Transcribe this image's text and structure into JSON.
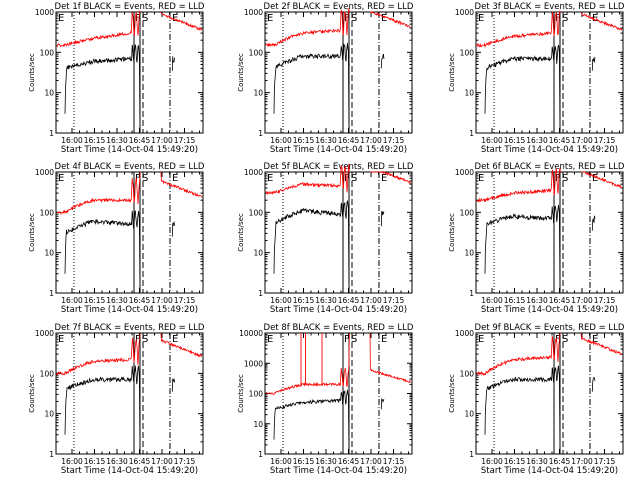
{
  "colors": {
    "events": "#000000",
    "lld": "#ff0000",
    "background": "#ffffff",
    "axis": "#000000"
  },
  "common": {
    "ylabel": "Counts/sec",
    "xlabel": "Start Time (14-Oct-04 15:49:20)",
    "xticks": [
      "16:00",
      "16:15",
      "16:30",
      "16:45",
      "17:00",
      "17:15"
    ],
    "flags": [
      "E",
      "F",
      "S",
      "E"
    ]
  },
  "chart_data": [
    {
      "type": "line",
      "title": "Det 1f BLACK = Events, RED = LLD",
      "xlabel": "Start Time (14-Oct-04 15:49:20)",
      "ylabel": "Counts/sec",
      "ylim": [
        1,
        1000
      ],
      "yticks": [
        "1",
        "10",
        "100",
        "1000"
      ],
      "xticks": [
        "16:00",
        "16:15",
        "16:30",
        "16:45",
        "17:00",
        "17:15"
      ],
      "series": [
        {
          "name": "Events",
          "x": [
            "16:00",
            "16:15",
            "16:30"
          ],
          "values": [
            40,
            60,
            70
          ]
        },
        {
          "name": "LLD",
          "x": [
            "16:00",
            "16:15",
            "16:30"
          ],
          "values": [
            150,
            220,
            300
          ]
        }
      ]
    },
    {
      "type": "line",
      "title": "Det 2f BLACK = Events, RED = LLD",
      "xlabel": "Start Time (14-Oct-04 15:49:20)",
      "ylabel": "Counts/sec",
      "ylim": [
        1,
        1000
      ],
      "yticks": [
        "1",
        "10",
        "100",
        "1000"
      ],
      "xticks": [
        "16:00",
        "16:15",
        "16:30",
        "16:45",
        "17:00",
        "17:15"
      ],
      "series": [
        {
          "name": "Events",
          "x": [
            "16:00",
            "16:15",
            "16:30"
          ],
          "values": [
            40,
            80,
            80
          ]
        },
        {
          "name": "LLD",
          "x": [
            "16:00",
            "16:15",
            "16:30"
          ],
          "values": [
            150,
            300,
            350
          ]
        }
      ]
    },
    {
      "type": "line",
      "title": "Det 3f BLACK = Events, RED = LLD",
      "xlabel": "Start Time (14-Oct-04 15:49:20)",
      "ylabel": "Counts/sec",
      "ylim": [
        1,
        1000
      ],
      "yticks": [
        "1",
        "10",
        "100",
        "1000"
      ],
      "xticks": [
        "16:00",
        "16:15",
        "16:30",
        "16:45",
        "17:00",
        "17:15"
      ],
      "series": [
        {
          "name": "Events",
          "x": [
            "16:00",
            "16:15",
            "16:30"
          ],
          "values": [
            40,
            70,
            70
          ]
        },
        {
          "name": "LLD",
          "x": [
            "16:00",
            "16:15",
            "16:30"
          ],
          "values": [
            150,
            250,
            300
          ]
        }
      ]
    },
    {
      "type": "line",
      "title": "Det 4f BLACK = Events, RED = LLD",
      "xlabel": "Start Time (14-Oct-04 15:49:20)",
      "ylabel": "Counts/sec",
      "ylim": [
        1,
        1000
      ],
      "yticks": [
        "1",
        "10",
        "100",
        "1000"
      ],
      "xticks": [
        "16:00",
        "16:15",
        "16:30",
        "16:45",
        "17:00",
        "17:15"
      ],
      "series": [
        {
          "name": "Events",
          "x": [
            "16:00",
            "16:15",
            "16:30"
          ],
          "values": [
            30,
            60,
            50
          ]
        },
        {
          "name": "LLD",
          "x": [
            "16:00",
            "16:15",
            "16:30"
          ],
          "values": [
            100,
            200,
            200
          ]
        }
      ]
    },
    {
      "type": "line",
      "title": "Det 5f BLACK = Events, RED = LLD",
      "xlabel": "Start Time (14-Oct-04 15:49:20)",
      "ylabel": "Counts/sec",
      "ylim": [
        1,
        1000
      ],
      "yticks": [
        "1",
        "10",
        "100",
        "1000"
      ],
      "xticks": [
        "16:00",
        "16:15",
        "16:30",
        "16:45",
        "17:00",
        "17:15"
      ],
      "series": [
        {
          "name": "Events",
          "x": [
            "16:00",
            "16:15",
            "16:30"
          ],
          "values": [
            50,
            110,
            90
          ]
        },
        {
          "name": "LLD",
          "x": [
            "16:00",
            "16:15",
            "16:30"
          ],
          "values": [
            300,
            500,
            450
          ]
        }
      ]
    },
    {
      "type": "line",
      "title": "Det 6f BLACK = Events, RED = LLD",
      "xlabel": "Start Time (14-Oct-04 15:49:20)",
      "ylabel": "Counts/sec",
      "ylim": [
        1,
        1000
      ],
      "yticks": [
        "1",
        "10",
        "100",
        "1000"
      ],
      "xticks": [
        "16:00",
        "16:15",
        "16:30",
        "16:45",
        "17:00",
        "17:15"
      ],
      "series": [
        {
          "name": "Events",
          "x": [
            "16:00",
            "16:15",
            "16:30"
          ],
          "values": [
            50,
            80,
            70
          ]
        },
        {
          "name": "LLD",
          "x": [
            "16:00",
            "16:15",
            "16:30"
          ],
          "values": [
            200,
            300,
            350
          ]
        }
      ]
    },
    {
      "type": "line",
      "title": "Det 7f BLACK = Events, RED = LLD",
      "xlabel": "Start Time (14-Oct-04 15:49:20)",
      "ylabel": "Counts/sec",
      "ylim": [
        1,
        1000
      ],
      "yticks": [
        "1",
        "10",
        "100",
        "1000"
      ],
      "xticks": [
        "16:00",
        "16:15",
        "16:30",
        "16:45",
        "17:00",
        "17:15"
      ],
      "series": [
        {
          "name": "Events",
          "x": [
            "16:00",
            "16:15",
            "16:30"
          ],
          "values": [
            40,
            70,
            70
          ]
        },
        {
          "name": "LLD",
          "x": [
            "16:00",
            "16:15",
            "16:30"
          ],
          "values": [
            100,
            200,
            220
          ]
        }
      ]
    },
    {
      "type": "line",
      "title": "Det 8f BLACK = Events, RED = LLD",
      "xlabel": "Start Time (14-Oct-04 15:49:20)",
      "ylabel": "Counts/sec",
      "ylim": [
        1,
        10000
      ],
      "yticks": [
        "1",
        "10",
        "100",
        "1000",
        "10000"
      ],
      "xticks": [
        "16:00",
        "16:15",
        "16:30",
        "16:45",
        "17:00",
        "17:15"
      ],
      "series": [
        {
          "name": "Events",
          "x": [
            "16:00",
            "16:15",
            "16:30"
          ],
          "values": [
            30,
            50,
            60
          ]
        },
        {
          "name": "LLD",
          "x": [
            "16:00",
            "16:15",
            "16:30"
          ],
          "values": [
            100,
            200,
            200
          ]
        }
      ]
    },
    {
      "type": "line",
      "title": "Det 9f BLACK = Events, RED = LLD",
      "xlabel": "Start Time (14-Oct-04 15:49:20)",
      "ylabel": "Counts/sec",
      "ylim": [
        1,
        1000
      ],
      "yticks": [
        "1",
        "10",
        "100",
        "1000"
      ],
      "xticks": [
        "16:00",
        "16:15",
        "16:30",
        "16:45",
        "17:00",
        "17:15"
      ],
      "series": [
        {
          "name": "Events",
          "x": [
            "16:00",
            "16:15",
            "16:30"
          ],
          "values": [
            40,
            70,
            70
          ]
        },
        {
          "name": "LLD",
          "x": [
            "16:00",
            "16:15",
            "16:30"
          ],
          "values": [
            100,
            220,
            250
          ]
        }
      ]
    }
  ]
}
